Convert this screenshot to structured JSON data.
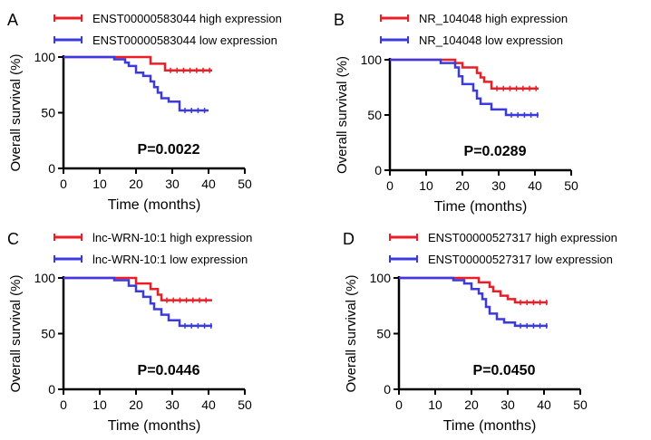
{
  "colors": {
    "high": "#ee1c25",
    "low": "#3a3ae0"
  },
  "chart_data": [
    {
      "type": "line",
      "panel": "A",
      "xlabel": "Time (months)",
      "ylabel": "Overall survival (%)",
      "xlim": [
        0,
        50
      ],
      "ylim": [
        0,
        100
      ],
      "xticks": [
        "0",
        "10",
        "20",
        "30",
        "40",
        "50"
      ],
      "yticks": [
        "0",
        "50",
        "100"
      ],
      "pvalue": "P=0.0022",
      "series": [
        {
          "name": "ENST00000583044 high expression",
          "steps": [
            [
              0,
              100
            ],
            [
              24,
              94
            ],
            [
              28,
              88
            ],
            [
              41,
              88
            ]
          ]
        },
        {
          "name": "ENST00000583044 low expression",
          "steps": [
            [
              0,
              100
            ],
            [
              14,
              98
            ],
            [
              17,
              95
            ],
            [
              18,
              92
            ],
            [
              20,
              86
            ],
            [
              22,
              83
            ],
            [
              24,
              78
            ],
            [
              25,
              73
            ],
            [
              26,
              68
            ],
            [
              27,
              63
            ],
            [
              29,
              60
            ],
            [
              32,
              52
            ],
            [
              40,
              52
            ]
          ]
        }
      ]
    },
    {
      "type": "line",
      "panel": "B",
      "xlabel": "Time (months)",
      "ylabel": "Overall survival (%)",
      "xlim": [
        0,
        50
      ],
      "ylim": [
        0,
        100
      ],
      "xticks": [
        "0",
        "10",
        "20",
        "30",
        "40",
        "50"
      ],
      "yticks": [
        "0",
        "50",
        "100"
      ],
      "pvalue": "P=0.0289",
      "series": [
        {
          "name": "NR_104048 high expression",
          "steps": [
            [
              0,
              100
            ],
            [
              18,
              97
            ],
            [
              20,
              93
            ],
            [
              24,
              88
            ],
            [
              25,
              84
            ],
            [
              26,
              80
            ],
            [
              28,
              74
            ],
            [
              41,
              74
            ]
          ]
        },
        {
          "name": "NR_104048 low expression",
          "steps": [
            [
              0,
              100
            ],
            [
              14,
              97
            ],
            [
              18,
              93
            ],
            [
              19,
              85
            ],
            [
              20,
              78
            ],
            [
              23,
              72
            ],
            [
              24,
              65
            ],
            [
              25,
              60
            ],
            [
              28,
              55
            ],
            [
              32,
              50
            ],
            [
              41,
              50
            ]
          ]
        }
      ]
    },
    {
      "type": "line",
      "panel": "C",
      "xlabel": "Time (months)",
      "ylabel": "Overall survival (%)",
      "xlim": [
        0,
        50
      ],
      "ylim": [
        0,
        100
      ],
      "xticks": [
        "0",
        "10",
        "20",
        "30",
        "40",
        "50"
      ],
      "yticks": [
        "0",
        "50",
        "100"
      ],
      "pvalue": "P=0.0446",
      "series": [
        {
          "name": "lnc-WRN-10:1 high expression",
          "steps": [
            [
              0,
              100
            ],
            [
              20,
              95
            ],
            [
              24,
              90
            ],
            [
              26,
              85
            ],
            [
              27,
              80
            ],
            [
              41,
              80
            ]
          ]
        },
        {
          "name": "lnc-WRN-10:1 low expression",
          "steps": [
            [
              0,
              100
            ],
            [
              14,
              98
            ],
            [
              18,
              93
            ],
            [
              20,
              88
            ],
            [
              22,
              83
            ],
            [
              24,
              77
            ],
            [
              25,
              72
            ],
            [
              27,
              67
            ],
            [
              29,
              62
            ],
            [
              32,
              57
            ],
            [
              41,
              57
            ]
          ]
        }
      ]
    },
    {
      "type": "line",
      "panel": "D",
      "xlabel": "Time (months)",
      "ylabel": "Overall survival (%)",
      "xlim": [
        0,
        50
      ],
      "ylim": [
        0,
        100
      ],
      "xticks": [
        "0",
        "10",
        "20",
        "30",
        "40",
        "50"
      ],
      "yticks": [
        "0",
        "50",
        "100"
      ],
      "pvalue": "P=0.0450",
      "series": [
        {
          "name": "ENST00000527317 high expression",
          "steps": [
            [
              0,
              100
            ],
            [
              22,
              96
            ],
            [
              25,
              92
            ],
            [
              26,
              88
            ],
            [
              28,
              84
            ],
            [
              30,
              81
            ],
            [
              32,
              78
            ],
            [
              41,
              78
            ]
          ]
        },
        {
          "name": "ENST00000527317 low expression",
          "steps": [
            [
              0,
              100
            ],
            [
              15,
              98
            ],
            [
              18,
              95
            ],
            [
              20,
              90
            ],
            [
              22,
              86
            ],
            [
              23,
              81
            ],
            [
              24,
              74
            ],
            [
              25,
              68
            ],
            [
              27,
              63
            ],
            [
              29,
              60
            ],
            [
              32,
              57
            ],
            [
              41,
              57
            ]
          ]
        }
      ]
    }
  ]
}
